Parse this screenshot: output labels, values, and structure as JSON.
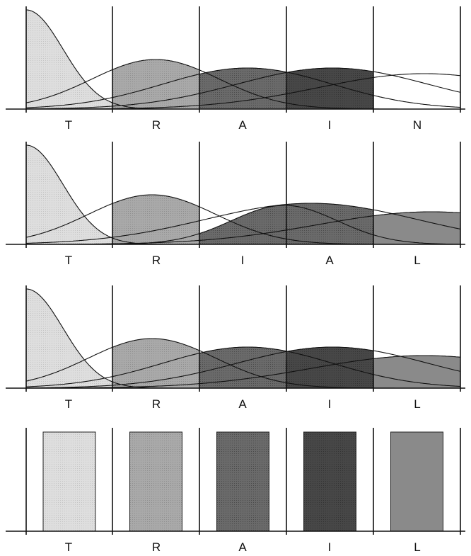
{
  "shades": {
    "c1": "#dedede",
    "c2": "#a9a9a9",
    "c3": "#6a6a6a",
    "c4": "#474747",
    "c5": "#8a8a8a"
  },
  "panels": [
    {
      "id": "train",
      "letters": [
        "T",
        "R",
        "A",
        "I",
        "N"
      ],
      "fills": [
        "c1",
        "c2",
        "c3",
        "c4",
        "white"
      ]
    },
    {
      "id": "trial",
      "letters": [
        "T",
        "R",
        "I",
        "A",
        "L"
      ],
      "fills": [
        "c1",
        "c2",
        "c3",
        "c3",
        "c5"
      ]
    },
    {
      "id": "trail",
      "letters": [
        "T",
        "R",
        "A",
        "I",
        "L"
      ],
      "fills": [
        "c1",
        "c2",
        "c3",
        "c4",
        "c5"
      ]
    }
  ],
  "bars": {
    "letters": [
      "T",
      "R",
      "A",
      "I",
      "L"
    ],
    "fills": [
      "c1",
      "c2",
      "c3",
      "c4",
      "c5"
    ],
    "heights": [
      1,
      1,
      1,
      1,
      1
    ]
  }
}
